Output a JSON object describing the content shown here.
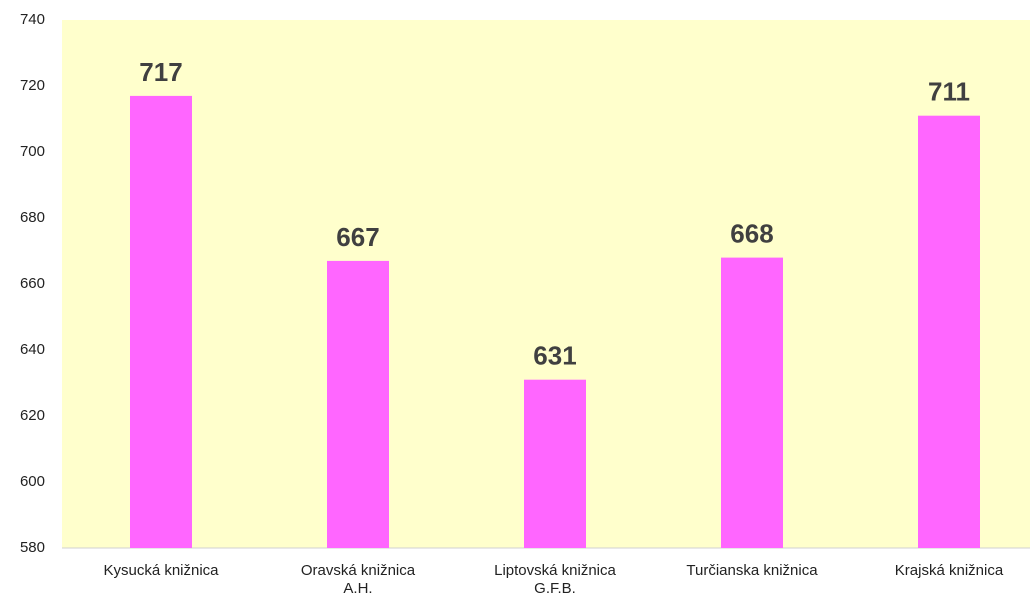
{
  "chart_data": {
    "type": "bar",
    "categories": [
      "Kysucká knižnica",
      "Oravská knižnica\nA.H.",
      "Liptovská knižnica\nG.F.B.",
      "Turčianska knižnica",
      "Krajská knižnica"
    ],
    "values": [
      717,
      667,
      631,
      668,
      711
    ],
    "color": "#ff66ff",
    "ylim": [
      580,
      740
    ],
    "yticks": [
      580,
      600,
      620,
      640,
      660,
      680,
      700,
      720,
      740
    ],
    "grid": false
  }
}
